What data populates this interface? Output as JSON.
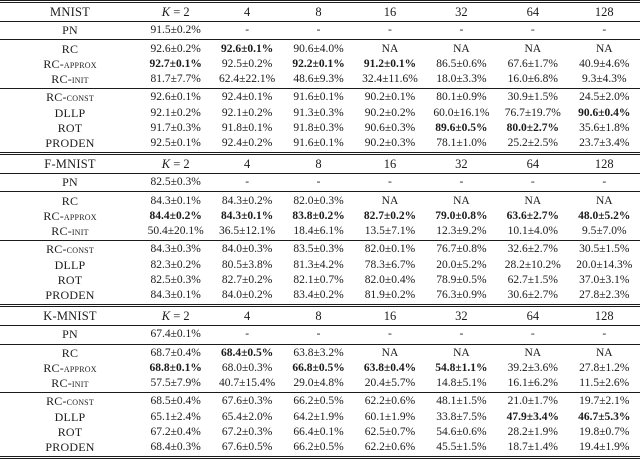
{
  "page": {
    "background": "#ffffff",
    "text_color": "#1b1b1b"
  },
  "table": {
    "k_header": {
      "var": "K",
      "rest": " = 2"
    },
    "col_headers": [
      "4",
      "8",
      "16",
      "32",
      "64",
      "128"
    ],
    "sections": [
      {
        "dataset": "MNIST",
        "groups": [
          {
            "rows": [
              {
                "label": "PN",
                "cells": [
                  {
                    "v": "91.5±0.2%"
                  },
                  {
                    "v": "-"
                  },
                  {
                    "v": "-"
                  },
                  {
                    "v": "-"
                  },
                  {
                    "v": "-"
                  },
                  {
                    "v": "-"
                  },
                  {
                    "v": "-"
                  }
                ]
              }
            ]
          },
          {
            "rows": [
              {
                "label": "RC",
                "cells": [
                  {
                    "v": "92.6±0.2%"
                  },
                  {
                    "v": "92.6±0.1%",
                    "b": true
                  },
                  {
                    "v": "90.6±4.0%"
                  },
                  {
                    "v": "NA"
                  },
                  {
                    "v": "NA"
                  },
                  {
                    "v": "NA"
                  },
                  {
                    "v": "NA"
                  }
                ]
              },
              {
                "label": "RC-approx",
                "cells": [
                  {
                    "v": "92.7±0.1%",
                    "b": true
                  },
                  {
                    "v": "92.5±0.2%"
                  },
                  {
                    "v": "92.2±0.1%",
                    "b": true
                  },
                  {
                    "v": "91.2±0.1%",
                    "b": true
                  },
                  {
                    "v": "86.5±0.6%"
                  },
                  {
                    "v": "67.6±1.7%"
                  },
                  {
                    "v": "40.9±4.6%"
                  }
                ]
              },
              {
                "label": "RC-init",
                "cells": [
                  {
                    "v": "81.7±7.7%"
                  },
                  {
                    "v": "62.4±22.1%"
                  },
                  {
                    "v": "48.6±9.3%"
                  },
                  {
                    "v": "32.4±11.6%"
                  },
                  {
                    "v": "18.0±3.3%"
                  },
                  {
                    "v": "16.0±6.8%"
                  },
                  {
                    "v": "9.3±4.3%"
                  }
                ]
              }
            ]
          },
          {
            "rows": [
              {
                "label": "RC-const",
                "cells": [
                  {
                    "v": "92.6±0.1%"
                  },
                  {
                    "v": "92.4±0.1%"
                  },
                  {
                    "v": "91.6±0.1%"
                  },
                  {
                    "v": "90.2±0.1%"
                  },
                  {
                    "v": "80.1±0.9%"
                  },
                  {
                    "v": "30.9±1.5%"
                  },
                  {
                    "v": "24.5±2.0%"
                  }
                ]
              },
              {
                "label": "DLLP",
                "cells": [
                  {
                    "v": "92.1±0.2%"
                  },
                  {
                    "v": "92.1±0.2%"
                  },
                  {
                    "v": "91.3±0.3%"
                  },
                  {
                    "v": "90.2±0.2%"
                  },
                  {
                    "v": "60.0±16.1%"
                  },
                  {
                    "v": "76.7±19.7%"
                  },
                  {
                    "v": "90.6±0.4%",
                    "b": true
                  }
                ]
              },
              {
                "label": "ROT",
                "cells": [
                  {
                    "v": "91.7±0.3%"
                  },
                  {
                    "v": "91.8±0.1%"
                  },
                  {
                    "v": "91.8±0.3%"
                  },
                  {
                    "v": "90.6±0.3%"
                  },
                  {
                    "v": "89.6±0.5%",
                    "b": true
                  },
                  {
                    "v": "80.0±2.7%",
                    "b": true
                  },
                  {
                    "v": "35.6±1.8%"
                  }
                ]
              },
              {
                "label": "PRODEN",
                "cells": [
                  {
                    "v": "92.5±0.1%"
                  },
                  {
                    "v": "92.4±0.2%"
                  },
                  {
                    "v": "91.6±0.1%"
                  },
                  {
                    "v": "90.2±0.3%"
                  },
                  {
                    "v": "78.1±1.0%"
                  },
                  {
                    "v": "25.2±2.5%"
                  },
                  {
                    "v": "23.7±3.4%"
                  }
                ]
              }
            ]
          }
        ]
      },
      {
        "dataset": "F-MNIST",
        "groups": [
          {
            "rows": [
              {
                "label": "PN",
                "cells": [
                  {
                    "v": "82.5±0.3%"
                  },
                  {
                    "v": "-"
                  },
                  {
                    "v": "-"
                  },
                  {
                    "v": "-"
                  },
                  {
                    "v": "-"
                  },
                  {
                    "v": "-"
                  },
                  {
                    "v": "-"
                  }
                ]
              }
            ]
          },
          {
            "rows": [
              {
                "label": "RC",
                "cells": [
                  {
                    "v": "84.3±0.1%"
                  },
                  {
                    "v": "84.3±0.2%"
                  },
                  {
                    "v": "82.0±0.3%"
                  },
                  {
                    "v": "NA"
                  },
                  {
                    "v": "NA"
                  },
                  {
                    "v": "NA"
                  },
                  {
                    "v": "NA"
                  }
                ]
              },
              {
                "label": "RC-approx",
                "cells": [
                  {
                    "v": "84.4±0.2%",
                    "b": true
                  },
                  {
                    "v": "84.3±0.1%",
                    "b": true
                  },
                  {
                    "v": "83.8±0.2%",
                    "b": true
                  },
                  {
                    "v": "82.7±0.2%",
                    "b": true
                  },
                  {
                    "v": "79.0±0.8%",
                    "b": true
                  },
                  {
                    "v": "63.6±2.7%",
                    "b": true
                  },
                  {
                    "v": "48.0±5.2%",
                    "b": true
                  }
                ]
              },
              {
                "label": "RC-init",
                "cells": [
                  {
                    "v": "50.4±20.1%"
                  },
                  {
                    "v": "36.5±12.1%"
                  },
                  {
                    "v": "18.4±6.1%"
                  },
                  {
                    "v": "13.5±7.1%"
                  },
                  {
                    "v": "12.3±9.2%"
                  },
                  {
                    "v": "10.1±4.0%"
                  },
                  {
                    "v": "9.5±7.0%"
                  }
                ]
              }
            ]
          },
          {
            "rows": [
              {
                "label": "RC-const",
                "cells": [
                  {
                    "v": "84.3±0.3%"
                  },
                  {
                    "v": "84.0±0.3%"
                  },
                  {
                    "v": "83.5±0.3%"
                  },
                  {
                    "v": "82.0±0.1%"
                  },
                  {
                    "v": "76.7±0.8%"
                  },
                  {
                    "v": "32.6±2.7%"
                  },
                  {
                    "v": "30.5±1.5%"
                  }
                ]
              },
              {
                "label": "DLLP",
                "cells": [
                  {
                    "v": "82.3±0.2%"
                  },
                  {
                    "v": "80.5±3.8%"
                  },
                  {
                    "v": "81.3±4.2%"
                  },
                  {
                    "v": "78.3±6.7%"
                  },
                  {
                    "v": "20.0±5.2%"
                  },
                  {
                    "v": "28.2±10.2%"
                  },
                  {
                    "v": "20.0±14.3%"
                  }
                ]
              },
              {
                "label": "ROT",
                "cells": [
                  {
                    "v": "82.5±0.3%"
                  },
                  {
                    "v": "82.7±0.2%"
                  },
                  {
                    "v": "82.1±0.7%"
                  },
                  {
                    "v": "82.0±0.4%"
                  },
                  {
                    "v": "78.9±0.5%"
                  },
                  {
                    "v": "62.7±1.5%"
                  },
                  {
                    "v": "37.0±3.1%"
                  }
                ]
              },
              {
                "label": "PRODEN",
                "cells": [
                  {
                    "v": "84.3±0.1%"
                  },
                  {
                    "v": "84.0±0.2%"
                  },
                  {
                    "v": "83.4±0.2%"
                  },
                  {
                    "v": "81.9±0.2%"
                  },
                  {
                    "v": "76.3±0.9%"
                  },
                  {
                    "v": "30.6±2.7%"
                  },
                  {
                    "v": "27.8±2.3%"
                  }
                ]
              }
            ]
          }
        ]
      },
      {
        "dataset": "K-MNIST",
        "groups": [
          {
            "rows": [
              {
                "label": "PN",
                "cells": [
                  {
                    "v": "67.4±0.1%"
                  },
                  {
                    "v": "-"
                  },
                  {
                    "v": "-"
                  },
                  {
                    "v": "-"
                  },
                  {
                    "v": "-"
                  },
                  {
                    "v": "-"
                  },
                  {
                    "v": "-"
                  }
                ]
              }
            ]
          },
          {
            "rows": [
              {
                "label": "RC",
                "cells": [
                  {
                    "v": "68.7±0.4%"
                  },
                  {
                    "v": "68.4±0.5%",
                    "b": true
                  },
                  {
                    "v": "63.8±3.2%"
                  },
                  {
                    "v": "NA"
                  },
                  {
                    "v": "NA"
                  },
                  {
                    "v": "NA"
                  },
                  {
                    "v": "NA"
                  }
                ]
              },
              {
                "label": "RC-approx",
                "cells": [
                  {
                    "v": "68.8±0.1%",
                    "b": true
                  },
                  {
                    "v": "68.0±0.3%"
                  },
                  {
                    "v": "66.8±0.5%",
                    "b": true
                  },
                  {
                    "v": "63.8±0.4%",
                    "b": true
                  },
                  {
                    "v": "54.8±1.1%",
                    "b": true
                  },
                  {
                    "v": "39.2±3.6%"
                  },
                  {
                    "v": "27.8±1.2%"
                  }
                ]
              },
              {
                "label": "RC-init",
                "cells": [
                  {
                    "v": "57.5±7.9%"
                  },
                  {
                    "v": "40.7±15.4%"
                  },
                  {
                    "v": "29.0±4.8%"
                  },
                  {
                    "v": "20.4±5.7%"
                  },
                  {
                    "v": "14.8±5.1%"
                  },
                  {
                    "v": "16.1±6.2%"
                  },
                  {
                    "v": "11.5±2.6%"
                  }
                ]
              }
            ]
          },
          {
            "rows": [
              {
                "label": "RC-const",
                "cells": [
                  {
                    "v": "68.5±0.4%"
                  },
                  {
                    "v": "67.6±0.3%"
                  },
                  {
                    "v": "66.2±0.5%"
                  },
                  {
                    "v": "62.2±0.6%"
                  },
                  {
                    "v": "48.1±1.5%"
                  },
                  {
                    "v": "21.0±1.7%"
                  },
                  {
                    "v": "19.7±2.1%"
                  }
                ]
              },
              {
                "label": "DLLP",
                "cells": [
                  {
                    "v": "65.1±2.4%"
                  },
                  {
                    "v": "65.4±2.0%"
                  },
                  {
                    "v": "64.2±1.9%"
                  },
                  {
                    "v": "60.1±1.9%"
                  },
                  {
                    "v": "33.8±7.5%"
                  },
                  {
                    "v": "47.9±3.4%",
                    "b": true
                  },
                  {
                    "v": "46.7±5.3%",
                    "b": true
                  }
                ]
              },
              {
                "label": "ROT",
                "cells": [
                  {
                    "v": "67.2±0.4%"
                  },
                  {
                    "v": "67.2±0.3%"
                  },
                  {
                    "v": "66.4±0.1%"
                  },
                  {
                    "v": "62.5±0.7%"
                  },
                  {
                    "v": "54.6±0.6%"
                  },
                  {
                    "v": "28.2±1.9%"
                  },
                  {
                    "v": "19.8±0.7%"
                  }
                ]
              },
              {
                "label": "PRODEN",
                "cells": [
                  {
                    "v": "68.4±0.3%"
                  },
                  {
                    "v": "67.6±0.5%"
                  },
                  {
                    "v": "66.2±0.5%"
                  },
                  {
                    "v": "62.2±0.6%"
                  },
                  {
                    "v": "45.5±1.5%"
                  },
                  {
                    "v": "18.7±1.4%"
                  },
                  {
                    "v": "19.4±1.9%"
                  }
                ]
              }
            ]
          }
        ]
      }
    ]
  }
}
